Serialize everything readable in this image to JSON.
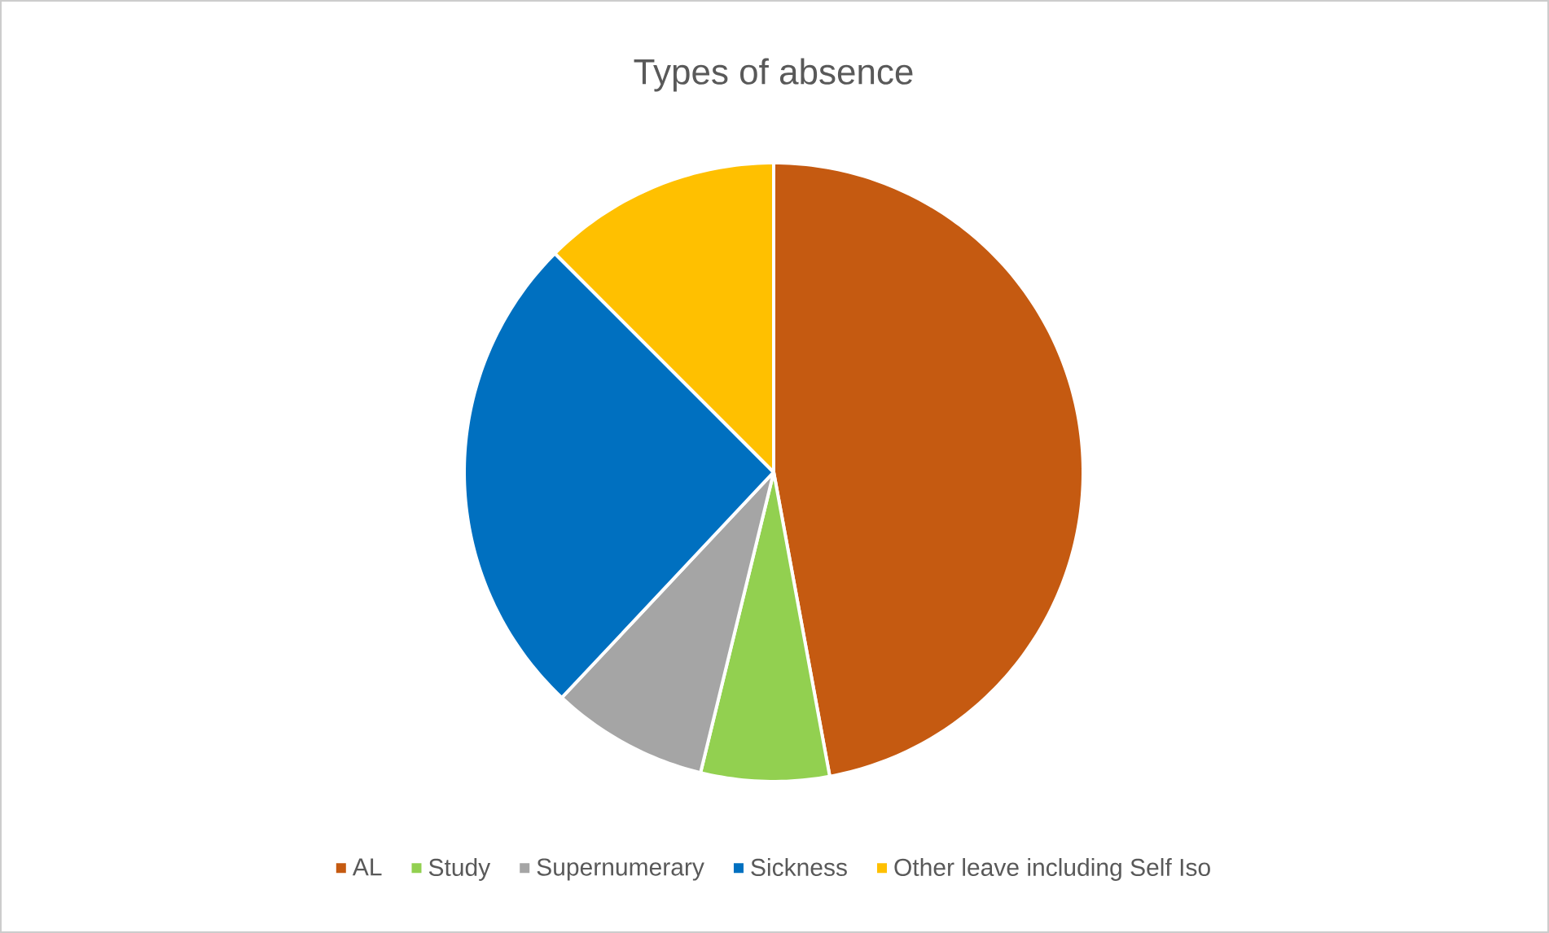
{
  "chart_data": {
    "type": "pie",
    "title": "Types of absence",
    "categories": [
      "AL",
      "Study",
      "Supernumerary",
      "Sickness",
      "Other leave including Self Iso"
    ],
    "values": [
      47.1,
      6.7,
      8.2,
      25.5,
      12.5
    ],
    "colors": [
      "#c55a11",
      "#92d050",
      "#a5a5a5",
      "#0070c0",
      "#ffc000"
    ],
    "legend": "bottom"
  }
}
